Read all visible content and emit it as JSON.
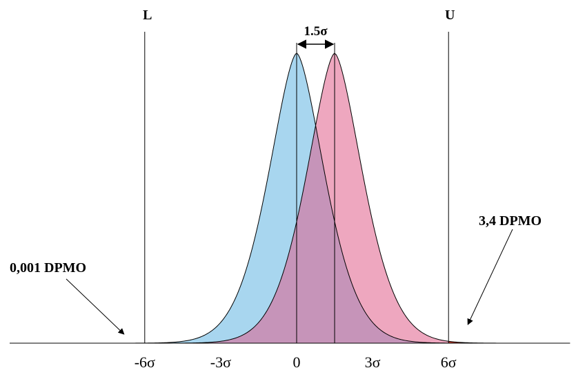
{
  "chart_data": {
    "type": "area",
    "x_ticks": [
      "-6σ",
      "-3σ",
      "0",
      "3σ",
      "6σ"
    ],
    "tick_values": [
      -6,
      -3,
      0,
      3,
      6
    ],
    "xlim": [
      -11.7,
      10.8
    ],
    "limits": {
      "lower": {
        "label": "L",
        "value": -6
      },
      "upper": {
        "label": "U",
        "value": 6
      }
    },
    "series": [
      {
        "mean": 0,
        "sd": 1,
        "color": "#a8d6ef",
        "tail_color": "#2e4a98"
      },
      {
        "mean": 1.5,
        "sd": 1,
        "color": "#eea7bf",
        "tail_color": "#e0402a"
      }
    ],
    "overlap_color": "#c694b9",
    "shift": {
      "label": "1.5σ",
      "from": 0,
      "to": 1.5
    },
    "annotations": [
      {
        "text": "0,001 DPMO",
        "points_to": "lower tail"
      },
      {
        "text": "3,4 DPMO",
        "points_to": "upper tail"
      }
    ]
  }
}
